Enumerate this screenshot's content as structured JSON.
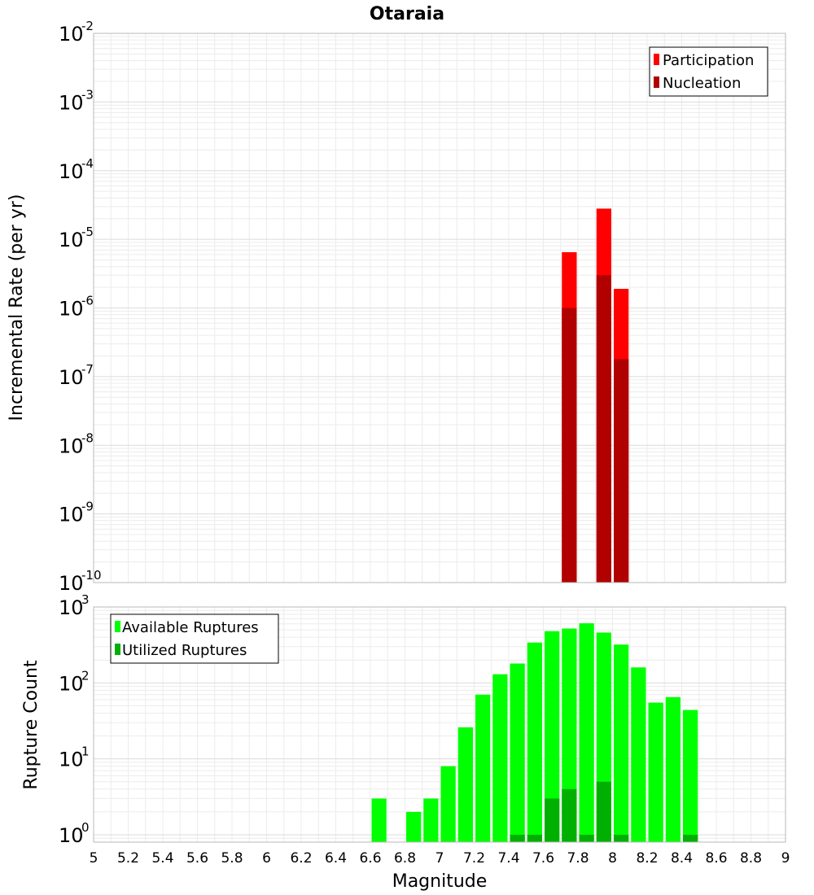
{
  "title": "Otaraia",
  "chart_data": [
    {
      "type": "bar",
      "ylabel": "Incremental Rate (per yr)",
      "yscale": "log",
      "ylim": [
        1e-10,
        0.01
      ],
      "xlim": [
        5,
        9
      ],
      "bin_width": 0.1,
      "grid": true,
      "legend_position": "top-right",
      "y_ticks": [
        {
          "base": "10",
          "exp": "-2",
          "value": 0.01
        },
        {
          "base": "10",
          "exp": "-3",
          "value": 0.001
        },
        {
          "base": "10",
          "exp": "-4",
          "value": 0.0001
        },
        {
          "base": "10",
          "exp": "-5",
          "value": 1e-05
        },
        {
          "base": "10",
          "exp": "-6",
          "value": 1e-06
        },
        {
          "base": "10",
          "exp": "-7",
          "value": 1e-07
        },
        {
          "base": "10",
          "exp": "-8",
          "value": 1e-08
        },
        {
          "base": "10",
          "exp": "-9",
          "value": 1e-09
        },
        {
          "base": "10",
          "exp": "-10",
          "value": 1e-10
        }
      ],
      "series": [
        {
          "name": "Participation",
          "color": "#ff0000",
          "x": [
            7.75,
            7.95,
            8.05
          ],
          "values": [
            6.5e-06,
            2.8e-05,
            1.9e-06
          ]
        },
        {
          "name": "Nucleation",
          "color": "#b00000",
          "x": [
            7.75,
            7.95,
            8.05
          ],
          "values": [
            1e-06,
            3e-06,
            1.8e-07
          ]
        }
      ]
    },
    {
      "type": "bar",
      "ylabel": "Rupture Count",
      "yscale": "log",
      "ylim": [
        0.8,
        1000
      ],
      "xlim": [
        5,
        9
      ],
      "bin_width": 0.1,
      "grid": true,
      "legend_position": "top-left",
      "y_ticks": [
        {
          "base": "10",
          "exp": "3",
          "value": 1000
        },
        {
          "base": "10",
          "exp": "2",
          "value": 100
        },
        {
          "base": "10",
          "exp": "1",
          "value": 10
        },
        {
          "base": "10",
          "exp": "0",
          "value": 1
        }
      ],
      "series": [
        {
          "name": "Available Ruptures",
          "color": "#00ff00",
          "x": [
            6.65,
            6.85,
            6.95,
            7.05,
            7.15,
            7.25,
            7.35,
            7.45,
            7.55,
            7.65,
            7.75,
            7.85,
            7.95,
            8.05,
            8.15,
            8.25,
            8.35,
            8.45
          ],
          "values": [
            3,
            2,
            3,
            8,
            26,
            70,
            130,
            180,
            340,
            480,
            520,
            610,
            460,
            320,
            160,
            55,
            65,
            44
          ]
        },
        {
          "name": "Utilized Ruptures",
          "color": "#00b000",
          "x": [
            7.45,
            7.55,
            7.65,
            7.75,
            7.85,
            7.95,
            8.05,
            8.45
          ],
          "values": [
            1,
            1,
            3,
            4,
            1,
            5,
            1,
            1
          ]
        }
      ]
    }
  ],
  "x_axis": {
    "label": "Magnitude",
    "ticks": [
      "5",
      "5.2",
      "5.4",
      "5.6",
      "5.8",
      "6",
      "6.2",
      "6.4",
      "6.6",
      "6.8",
      "7",
      "7.2",
      "7.4",
      "7.6",
      "7.8",
      "8",
      "8.2",
      "8.4",
      "8.6",
      "8.8",
      "9"
    ]
  }
}
